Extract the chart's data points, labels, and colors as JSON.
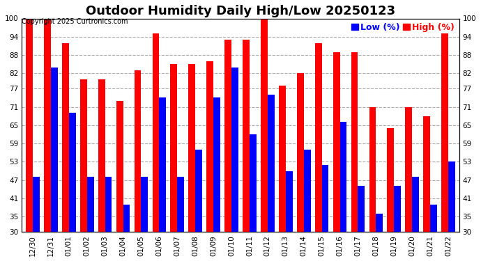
{
  "title": "Outdoor Humidity Daily High/Low 20250123",
  "copyright": "Copyright 2025 Curtronics.com",
  "legend_low": "Low (%)",
  "legend_high": "High (%)",
  "categories": [
    "12/30",
    "12/31",
    "01/01",
    "01/02",
    "01/03",
    "01/04",
    "01/05",
    "01/06",
    "01/07",
    "01/08",
    "01/09",
    "01/10",
    "01/11",
    "01/12",
    "01/13",
    "01/14",
    "01/15",
    "01/16",
    "01/17",
    "01/18",
    "01/19",
    "01/20",
    "01/21",
    "01/22"
  ],
  "high": [
    100,
    100,
    92,
    80,
    80,
    73,
    83,
    95,
    85,
    85,
    86,
    93,
    93,
    100,
    78,
    82,
    92,
    89,
    89,
    71,
    64,
    71,
    68,
    95
  ],
  "low": [
    48,
    84,
    69,
    48,
    48,
    39,
    48,
    74,
    48,
    57,
    74,
    84,
    62,
    75,
    50,
    57,
    52,
    66,
    45,
    36,
    45,
    48,
    39,
    53
  ],
  "bar_width": 0.38,
  "ylim_min": 30,
  "ylim_max": 100,
  "yticks": [
    30,
    35,
    41,
    47,
    53,
    59,
    65,
    71,
    77,
    82,
    88,
    94,
    100
  ],
  "color_high": "#ff0000",
  "color_low": "#0000ff",
  "background_color": "#ffffff",
  "grid_color": "#aaaaaa",
  "title_fontsize": 13,
  "tick_fontsize": 7.5,
  "legend_fontsize": 9,
  "copyright_fontsize": 7
}
